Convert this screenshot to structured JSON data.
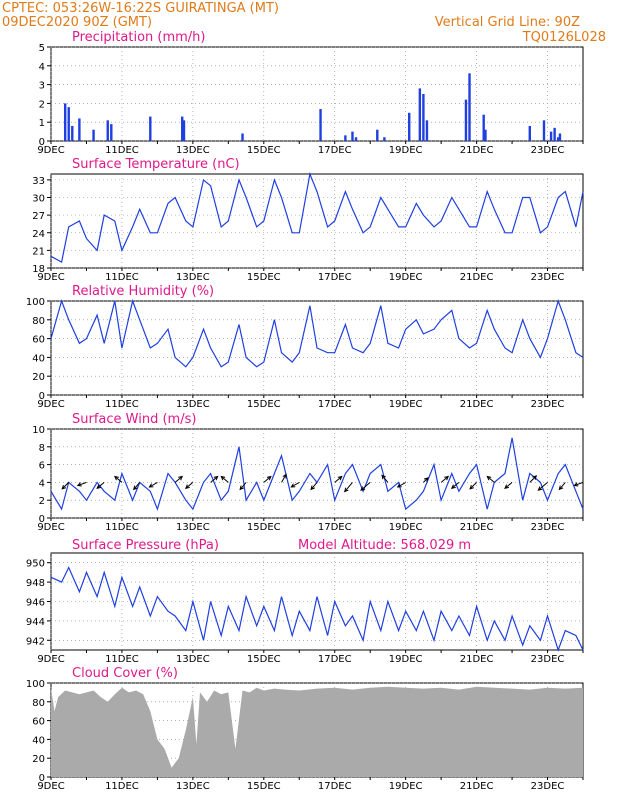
{
  "header": {
    "line1": "CPTEC:    053:26W-16:22S    GUIRATINGA (MT)",
    "line2": "09DEC2020  90Z (GMT)",
    "right1": "Vertical Grid Line: 90Z",
    "right2": "TQ0126L028"
  },
  "x_date_labels": [
    "9DEC",
    "11DEC",
    "13DEC",
    "15DEC",
    "17DEC",
    "19DEC",
    "21DEC",
    "23DEC"
  ],
  "colors": {
    "header": "#e07b1a",
    "panel_title": "#e0198a",
    "line": "#1f3fe0",
    "bar": "#1f3fe0",
    "cloud": "#aaaaaa"
  },
  "chart_data": [
    {
      "id": "precip",
      "type": "bar",
      "title": "Precipitation (mm/h)",
      "ylim": [
        0,
        5
      ],
      "yticks": [
        0,
        1,
        2,
        3,
        4,
        5
      ],
      "x": [
        0.4,
        0.5,
        0.6,
        0.8,
        1.2,
        1.6,
        1.7,
        2.8,
        3.7,
        3.75,
        5.4,
        7.6,
        8.3,
        8.5,
        8.6,
        9.2,
        9.4,
        10.1,
        10.4,
        10.5,
        10.6,
        11.7,
        11.8,
        12.2,
        12.25,
        13.5,
        13.9,
        14.1,
        14.2,
        14.3,
        14.35
      ],
      "values": [
        2.0,
        1.8,
        0.8,
        1.2,
        0.6,
        1.1,
        0.9,
        1.3,
        1.3,
        1.1,
        0.4,
        1.7,
        0.3,
        0.5,
        0.2,
        0.6,
        0.2,
        1.5,
        2.8,
        2.5,
        1.1,
        2.2,
        3.6,
        1.4,
        0.6,
        0.8,
        1.1,
        0.5,
        0.7,
        0.2,
        0.4
      ],
      "grid": true
    },
    {
      "id": "temp",
      "type": "line",
      "title": "Surface Temperature (nC)",
      "ylim": [
        18,
        34
      ],
      "yticks": [
        18,
        21,
        24,
        27,
        30,
        33
      ],
      "x": [
        0,
        0.3,
        0.5,
        0.8,
        1.0,
        1.3,
        1.5,
        1.8,
        2.0,
        2.3,
        2.5,
        2.8,
        3.0,
        3.3,
        3.5,
        3.8,
        4.0,
        4.3,
        4.5,
        4.8,
        5.0,
        5.3,
        5.5,
        5.8,
        6.0,
        6.3,
        6.5,
        6.8,
        7.0,
        7.3,
        7.5,
        7.8,
        8.0,
        8.3,
        8.5,
        8.8,
        9.0,
        9.3,
        9.5,
        9.8,
        10.0,
        10.3,
        10.5,
        10.8,
        11.0,
        11.3,
        11.5,
        11.8,
        12.0,
        12.3,
        12.5,
        12.8,
        13.0,
        13.3,
        13.5,
        13.8,
        14.0,
        14.3,
        14.5,
        14.8,
        15.0
      ],
      "values": [
        20,
        19,
        25,
        26,
        23,
        21,
        27,
        26,
        21,
        25,
        28,
        24,
        24,
        29,
        30,
        26,
        25,
        33,
        32,
        25,
        26,
        33,
        30,
        25,
        26,
        33,
        30,
        24,
        24,
        34,
        31,
        25,
        26,
        31,
        28,
        24,
        25,
        30,
        28,
        25,
        25,
        29,
        27,
        25,
        26,
        30,
        28,
        25,
        25,
        31,
        28,
        24,
        24,
        30,
        30,
        24,
        25,
        30,
        31,
        25,
        31
      ],
      "grid": true
    },
    {
      "id": "rh",
      "type": "line",
      "title": "Relative Humidity (%)",
      "ylim": [
        0,
        100
      ],
      "yticks": [
        0,
        20,
        40,
        60,
        80,
        100
      ],
      "x": [
        0,
        0.3,
        0.5,
        0.8,
        1.0,
        1.3,
        1.5,
        1.8,
        2.0,
        2.3,
        2.5,
        2.8,
        3.0,
        3.3,
        3.5,
        3.8,
        4.0,
        4.3,
        4.5,
        4.8,
        5.0,
        5.3,
        5.5,
        5.8,
        6.0,
        6.3,
        6.5,
        6.8,
        7.0,
        7.3,
        7.5,
        7.8,
        8.0,
        8.3,
        8.5,
        8.8,
        9.0,
        9.3,
        9.5,
        9.8,
        10.0,
        10.3,
        10.5,
        10.8,
        11.0,
        11.3,
        11.5,
        11.8,
        12.0,
        12.3,
        12.5,
        12.8,
        13.0,
        13.3,
        13.5,
        13.8,
        14.0,
        14.3,
        14.5,
        14.8,
        15.0
      ],
      "values": [
        60,
        100,
        80,
        55,
        60,
        85,
        55,
        100,
        50,
        100,
        80,
        50,
        55,
        70,
        40,
        30,
        40,
        70,
        50,
        30,
        35,
        75,
        40,
        30,
        35,
        80,
        45,
        35,
        45,
        95,
        50,
        45,
        45,
        75,
        50,
        45,
        55,
        95,
        55,
        50,
        70,
        80,
        65,
        70,
        80,
        90,
        60,
        50,
        55,
        90,
        70,
        50,
        45,
        80,
        60,
        40,
        60,
        100,
        80,
        45,
        40
      ],
      "grid": true
    },
    {
      "id": "wind",
      "type": "line",
      "title": "Surface Wind (m/s)",
      "ylim": [
        0,
        10
      ],
      "yticks": [
        0,
        2,
        4,
        6,
        8,
        10
      ],
      "x": [
        0,
        0.3,
        0.5,
        0.8,
        1.0,
        1.3,
        1.5,
        1.8,
        2.0,
        2.3,
        2.5,
        2.8,
        3.0,
        3.3,
        3.5,
        3.8,
        4.0,
        4.3,
        4.5,
        4.8,
        5.0,
        5.3,
        5.5,
        5.8,
        6.0,
        6.3,
        6.5,
        6.8,
        7.0,
        7.3,
        7.5,
        7.8,
        8.0,
        8.3,
        8.5,
        8.8,
        9.0,
        9.3,
        9.5,
        9.8,
        10.0,
        10.3,
        10.5,
        10.8,
        11.0,
        11.3,
        11.5,
        11.8,
        12.0,
        12.3,
        12.5,
        12.8,
        13.0,
        13.3,
        13.5,
        13.8,
        14.0,
        14.3,
        14.5,
        14.8,
        15.0
      ],
      "values": [
        3,
        1,
        4,
        3,
        2,
        4,
        3,
        2,
        5,
        2,
        4,
        3,
        1,
        5,
        4,
        2,
        1,
        4,
        5,
        2,
        3,
        8,
        2,
        4,
        2,
        5,
        7,
        2,
        3,
        5,
        4,
        6,
        2,
        5,
        6,
        3,
        5,
        6,
        3,
        4,
        1,
        2,
        3,
        6,
        2,
        5,
        3,
        5,
        6,
        1,
        4,
        5,
        9,
        2,
        5,
        4,
        2,
        5,
        6,
        3,
        1
      ],
      "arrows_x": [
        0.5,
        1.0,
        1.5,
        2.0,
        2.5,
        3.0,
        3.5,
        4.0,
        4.5,
        5.0,
        5.5,
        6.0,
        6.5,
        7.0,
        7.5,
        8.0,
        8.5,
        9.0,
        9.5,
        10.0,
        10.5,
        11.0,
        11.5,
        12.0,
        12.5,
        13.0,
        13.5,
        14.0,
        14.5,
        15.0
      ],
      "arrows_angle": [
        225,
        200,
        220,
        140,
        230,
        210,
        40,
        220,
        40,
        140,
        230,
        40,
        60,
        210,
        230,
        40,
        230,
        220,
        130,
        210,
        45,
        40,
        220,
        225,
        140,
        220,
        45,
        220,
        230,
        200
      ],
      "arrows_len": [
        3,
        3,
        3,
        3,
        3,
        3,
        3,
        3,
        3,
        3,
        3,
        3,
        3,
        3,
        3,
        3,
        5,
        5,
        3,
        3,
        1,
        3,
        3,
        3,
        3,
        3,
        3,
        5,
        3,
        3
      ],
      "grid": true
    },
    {
      "id": "pressure",
      "type": "line",
      "title": "Surface Pressure (hPa)",
      "annotation": "Model Altitude: 568.029 m",
      "ylim": [
        941,
        951
      ],
      "yticks": [
        942,
        944,
        946,
        948,
        950
      ],
      "x": [
        0,
        0.3,
        0.5,
        0.8,
        1.0,
        1.3,
        1.5,
        1.8,
        2.0,
        2.3,
        2.5,
        2.8,
        3.0,
        3.3,
        3.5,
        3.8,
        4.0,
        4.3,
        4.5,
        4.8,
        5.0,
        5.3,
        5.5,
        5.8,
        6.0,
        6.3,
        6.5,
        6.8,
        7.0,
        7.3,
        7.5,
        7.8,
        8.0,
        8.3,
        8.5,
        8.8,
        9.0,
        9.3,
        9.5,
        9.8,
        10.0,
        10.3,
        10.5,
        10.8,
        11.0,
        11.3,
        11.5,
        11.8,
        12.0,
        12.3,
        12.5,
        12.8,
        13.0,
        13.3,
        13.5,
        13.8,
        14.0,
        14.3,
        14.5,
        14.8,
        15.0
      ],
      "values": [
        948.5,
        948,
        949.5,
        947,
        949,
        946.5,
        949,
        945.5,
        948.5,
        945.5,
        947.5,
        944.5,
        946.5,
        945,
        944.5,
        943,
        946,
        942,
        946,
        942.5,
        945.5,
        943,
        946.5,
        943.5,
        945.5,
        943,
        946.5,
        942.5,
        945,
        943,
        946.5,
        942.5,
        946,
        943.5,
        944.5,
        942,
        946,
        943,
        946,
        943,
        945,
        943,
        945,
        942,
        945,
        943,
        944.5,
        942.5,
        945.5,
        942,
        944,
        942,
        944.5,
        941.5,
        943.5,
        942,
        944.5,
        941,
        943,
        942.5,
        941
      ],
      "grid": true
    },
    {
      "id": "cloud",
      "type": "area",
      "title": "Cloud Cover (%)",
      "ylim": [
        0,
        100
      ],
      "yticks": [
        0,
        20,
        40,
        60,
        80,
        100
      ],
      "x": [
        0,
        0.1,
        0.2,
        0.4,
        0.6,
        0.8,
        1.0,
        1.2,
        1.4,
        1.6,
        1.8,
        2.0,
        2.2,
        2.4,
        2.6,
        2.8,
        3.0,
        3.2,
        3.4,
        3.6,
        3.8,
        4.0,
        4.1,
        4.2,
        4.4,
        4.6,
        4.8,
        5.0,
        5.2,
        5.4,
        5.6,
        5.8,
        6.0,
        6.3,
        6.6,
        7.0,
        7.5,
        8.0,
        8.5,
        9.0,
        9.5,
        10.0,
        10.5,
        11.0,
        11.5,
        12.0,
        12.5,
        13.0,
        13.5,
        14.0,
        14.5,
        15.0
      ],
      "values": [
        95,
        70,
        85,
        92,
        90,
        88,
        90,
        92,
        85,
        80,
        88,
        95,
        90,
        92,
        88,
        70,
        40,
        30,
        10,
        20,
        50,
        85,
        35,
        90,
        80,
        92,
        88,
        90,
        30,
        92,
        90,
        95,
        92,
        94,
        93,
        92,
        94,
        95,
        93,
        95,
        96,
        95,
        94,
        95,
        93,
        96,
        95,
        94,
        93,
        95,
        94,
        95
      ],
      "grid": true
    }
  ]
}
